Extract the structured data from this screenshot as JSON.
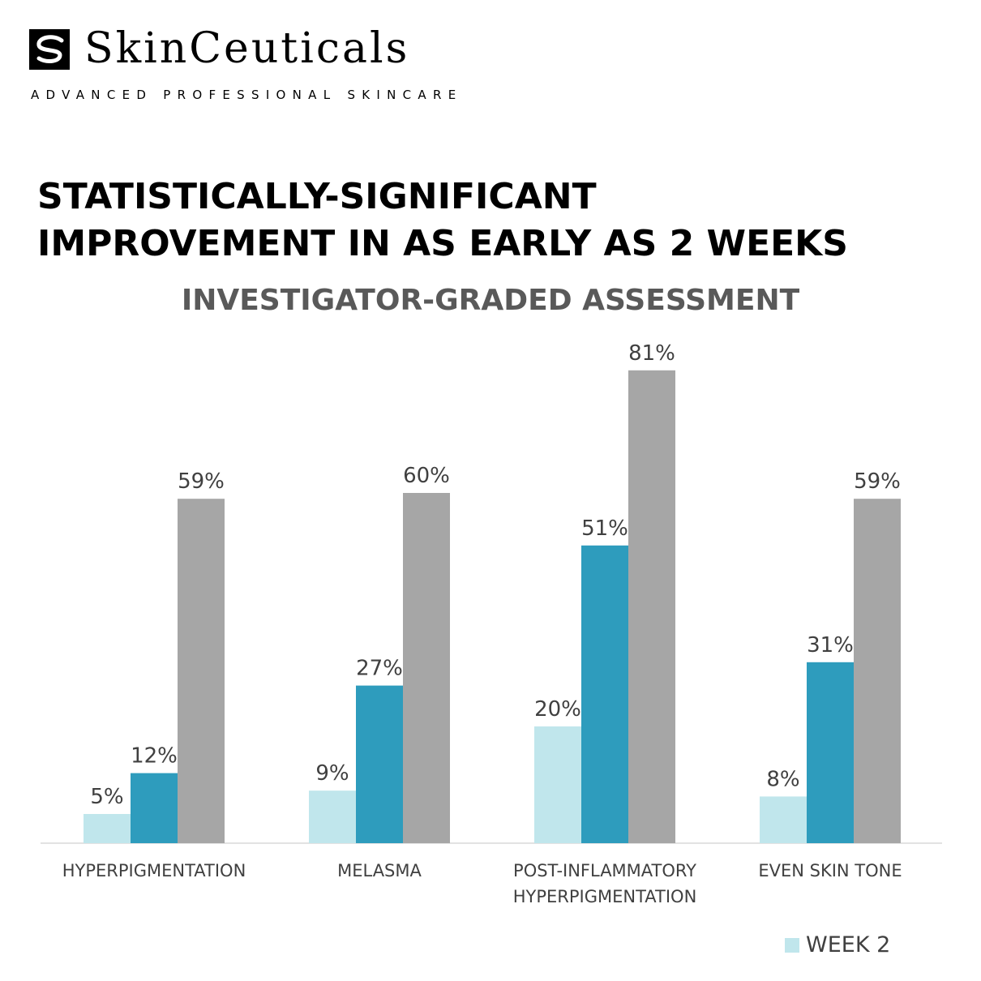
{
  "brand": {
    "name": "SkinCeuticals",
    "tagline": "ADVANCED PROFESSIONAL SKINCARE",
    "logo_icon": "swirl-logo-icon"
  },
  "headline": {
    "line1": "STATISTICALLY-SIGNIFICANT",
    "line2": "IMPROVEMENT IN AS EARLY AS 2 WEEKS"
  },
  "chart_data": {
    "type": "bar",
    "title": "INVESTIGATOR-GRADED ASSESSMENT",
    "categories": [
      [
        "HYPERPIGMENTATION"
      ],
      [
        "MELASMA"
      ],
      [
        "POST-INFLAMMATORY",
        "HYPERPIGMENTATION"
      ],
      [
        "EVEN SKIN TONE"
      ]
    ],
    "series": [
      {
        "name": "WEEK 2",
        "color": "#c0e6ec",
        "values": [
          5,
          9,
          20,
          8
        ]
      },
      {
        "color": "#2e9cbd",
        "values": [
          12,
          27,
          51,
          31
        ]
      },
      {
        "color": "#a6a6a6",
        "values": [
          59,
          60,
          81,
          59
        ]
      }
    ],
    "value_suffix": "%",
    "ylim": [
      0,
      100
    ],
    "grid": false,
    "legend_placement": "bottom-right"
  },
  "legend": {
    "week2_label": "WEEK 2"
  }
}
